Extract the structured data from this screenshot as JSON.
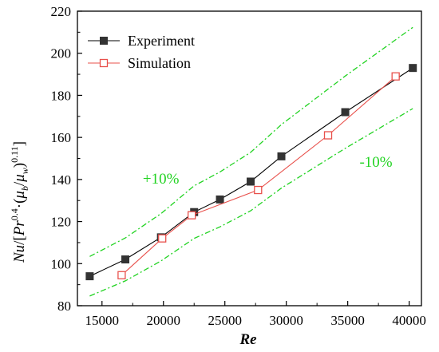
{
  "chart_data": {
    "type": "line",
    "xlabel": "Re",
    "ylabel": "Nu/[Pr^0.4·(μb/μw)^0.11]",
    "xlim": [
      13000,
      41000
    ],
    "ylim": [
      80,
      220
    ],
    "xticks": [
      15000,
      20000,
      25000,
      30000,
      35000,
      40000
    ],
    "yticks": [
      80,
      100,
      120,
      140,
      160,
      180,
      200,
      220
    ],
    "legend_position": "top-left",
    "grid": false,
    "series": [
      {
        "name": "Experiment",
        "color": "#000000",
        "marker_color": "#333333",
        "marker": "filled-square",
        "x": [
          14000,
          16900,
          19800,
          22500,
          24600,
          27100,
          29600,
          34800,
          40300
        ],
        "y": [
          94,
          102,
          112.5,
          124.5,
          130.5,
          139,
          151,
          172,
          193
        ]
      },
      {
        "name": "Simulation",
        "color": "#e8504b",
        "marker": "open-square",
        "x": [
          16600,
          19900,
          22300,
          27700,
          33400,
          38900
        ],
        "y": [
          94.5,
          112,
          123,
          135,
          161,
          189
        ]
      }
    ],
    "bounds": [
      {
        "label": "+10%",
        "color": "#22d322",
        "x": [
          14000,
          16900,
          19800,
          22500,
          24600,
          27100,
          29600,
          34800,
          40300
        ],
        "y": [
          103.4,
          112.2,
          123.8,
          137,
          143.6,
          152.9,
          166.1,
          189.2,
          212.3
        ]
      },
      {
        "label": "-10%",
        "color": "#22d322",
        "x": [
          14000,
          16900,
          19800,
          22500,
          24600,
          27100,
          29600,
          34800,
          40300
        ],
        "y": [
          84.6,
          91.8,
          101.3,
          112,
          117.5,
          125.1,
          135.9,
          154.8,
          173.7
        ]
      }
    ],
    "annotations": [
      {
        "text": "+10%",
        "x": 19800,
        "y": 138
      },
      {
        "text": "-10%",
        "x": 37300,
        "y": 146
      }
    ]
  }
}
